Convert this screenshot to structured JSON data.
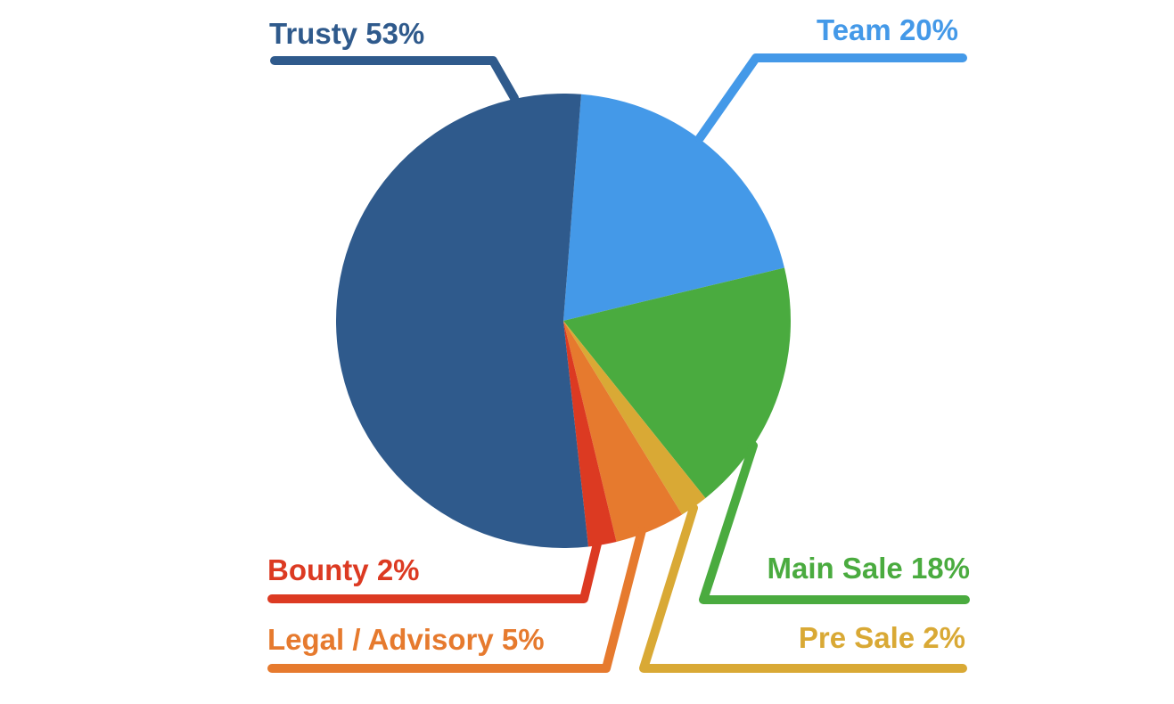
{
  "chart_data": {
    "type": "pie",
    "categories": [
      "Team",
      "Main Sale",
      "Pre Sale",
      "Legal / Advisory",
      "Bounty",
      "Trusty"
    ],
    "values": [
      20,
      18,
      2,
      5,
      2,
      53
    ],
    "value_labels": [
      "20%",
      "18%",
      "2%",
      "5%",
      "2%",
      "53%"
    ],
    "colors": [
      "#4499e8",
      "#4aab3f",
      "#d9a935",
      "#e67a2e",
      "#dc3a22",
      "#2f5a8c"
    ]
  }
}
